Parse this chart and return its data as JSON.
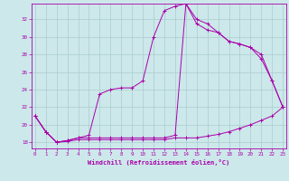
{
  "xlabel": "Windchill (Refroidissement éolien,°C)",
  "bg_color": "#cce8ea",
  "grid_color": "#aaccce",
  "line_color": "#aa00aa",
  "yticks": [
    18,
    20,
    22,
    24,
    26,
    28,
    30,
    32
  ],
  "xticks": [
    0,
    1,
    2,
    3,
    4,
    5,
    6,
    7,
    8,
    9,
    10,
    11,
    12,
    13,
    14,
    15,
    16,
    17,
    18,
    19,
    20,
    21,
    22,
    23
  ],
  "line1_x": [
    0,
    1,
    2,
    3,
    4,
    5,
    6,
    7,
    8,
    9,
    10,
    11,
    12,
    13,
    14,
    15,
    16,
    17,
    18,
    19,
    20,
    21,
    22,
    23
  ],
  "line1_y": [
    21.0,
    19.2,
    18.0,
    18.1,
    18.3,
    18.3,
    18.3,
    18.3,
    18.3,
    18.3,
    18.3,
    18.3,
    18.3,
    18.5,
    18.5,
    18.5,
    18.7,
    18.9,
    19.2,
    19.6,
    20.0,
    20.5,
    21.0,
    22.0
  ],
  "line2_x": [
    0,
    1,
    2,
    3,
    4,
    5,
    6,
    7,
    8,
    9,
    10,
    11,
    12,
    13,
    14,
    15,
    16,
    17,
    18,
    19,
    20,
    21,
    22,
    23
  ],
  "line2_y": [
    21.0,
    19.2,
    18.0,
    18.2,
    18.5,
    18.8,
    23.5,
    24.0,
    24.2,
    24.2,
    25.0,
    30.0,
    33.0,
    33.5,
    33.8,
    31.5,
    30.8,
    30.5,
    29.5,
    29.2,
    28.8,
    28.0,
    25.0,
    22.0
  ],
  "line3_x": [
    0,
    1,
    2,
    3,
    4,
    5,
    6,
    7,
    8,
    9,
    10,
    11,
    12,
    13,
    14,
    15,
    16,
    17,
    18,
    19,
    20,
    21,
    22,
    23
  ],
  "line3_y": [
    21.0,
    19.2,
    18.0,
    18.2,
    18.5,
    18.5,
    18.5,
    18.5,
    18.5,
    18.5,
    18.5,
    18.5,
    18.5,
    18.8,
    33.8,
    32.0,
    31.5,
    30.5,
    29.5,
    29.2,
    28.8,
    27.5,
    25.0,
    22.0
  ]
}
